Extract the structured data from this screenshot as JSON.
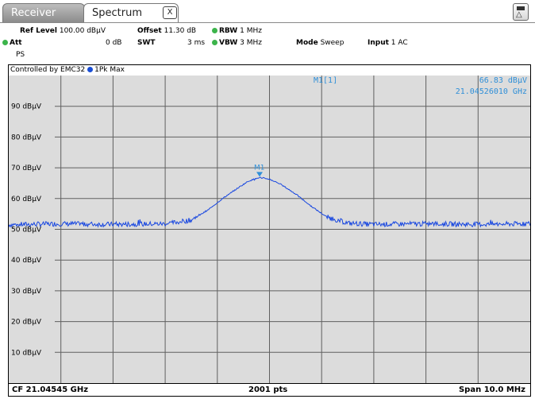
{
  "tabs": [
    {
      "label": "Receiver",
      "active": false
    },
    {
      "label": "Spectrum",
      "active": true
    }
  ],
  "tab_close_label": "X",
  "settings": {
    "ref_level_label": "Ref Level",
    "ref_level_value": "100.00 dBµV",
    "offset_label": "Offset",
    "offset_value": "11.30 dB",
    "rbw_label": "RBW",
    "rbw_value": "1 MHz",
    "att_label": "Att",
    "att_value": "0 dB",
    "swt_label": "SWT",
    "swt_value": "3 ms",
    "vbw_label": "VBW",
    "vbw_value": "3 MHz",
    "mode_label": "Mode",
    "mode_value": "Sweep",
    "input_label": "Input",
    "input_value": "1 AC",
    "ps_label": "PS"
  },
  "plot": {
    "controlled_by": "Controlled by EMC32",
    "trace_label": "1Pk Max",
    "marker_header": "M1[1]",
    "marker_level": "66.83 dBµV",
    "marker_freq": "21.04526010 GHz",
    "marker_tag": "M1",
    "footer_cf": "CF 21.04545 GHz",
    "footer_pts": "2001 pts",
    "footer_span": "Span 10.0 MHz"
  },
  "colors": {
    "trace": "#1746e0",
    "marker": "#2f8fd8",
    "grid_bg": "#dcdcdc",
    "grid_line": "#606060"
  },
  "chart_data": {
    "type": "line",
    "xlabel": "",
    "ylabel": "",
    "ylim": [
      0,
      100
    ],
    "yticks": [
      10,
      20,
      30,
      40,
      50,
      60,
      70,
      80,
      90
    ],
    "ytick_labels": [
      "10 dBµV",
      "20 dBµV",
      "30 dBµV",
      "40 dBµV",
      "50 dBµV",
      "60 dBµV",
      "70 dBµV",
      "80 dBµV",
      "90 dBµV"
    ],
    "x_unit": "GHz",
    "xlim": [
      21.04045,
      21.05045
    ],
    "x_divisions": 10,
    "series": [
      {
        "name": "1Pk Max",
        "x": [
          21.04045,
          21.04145,
          21.04245,
          21.04345,
          21.04395,
          21.04425,
          21.04455,
          21.04485,
          21.04505,
          21.04526,
          21.04545,
          21.04565,
          21.04595,
          21.04625,
          21.04655,
          21.04695,
          21.04745,
          21.04845,
          21.04945,
          21.05045
        ],
        "values": [
          51.5,
          51.8,
          51.6,
          51.8,
          53.0,
          56.0,
          60.0,
          63.5,
          65.7,
          66.83,
          66.3,
          64.8,
          61.5,
          57.5,
          54.0,
          52.0,
          51.6,
          51.8,
          51.6,
          51.8
        ]
      }
    ],
    "marker": {
      "label": "M1",
      "x": 21.0452601,
      "y": 66.83
    }
  }
}
